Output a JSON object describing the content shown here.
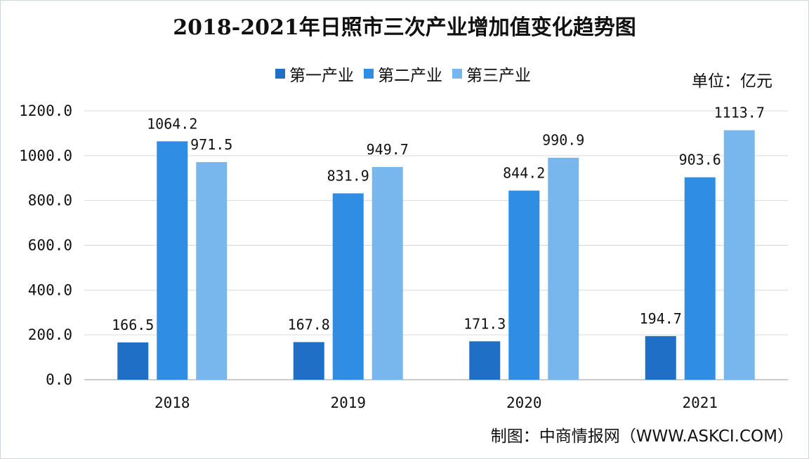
{
  "title": "2018-2021年日照市三次产业增加值变化趋势图",
  "unit_label": "单位：亿元",
  "source_label": "制图：中商情报网（WWW.ASKCI.COM）",
  "chart_data": {
    "type": "bar",
    "categories": [
      "2018",
      "2019",
      "2020",
      "2021"
    ],
    "series": [
      {
        "name": "第一产业",
        "values": [
          166.5,
          167.8,
          171.3,
          194.7
        ],
        "color": "#1e6fc5"
      },
      {
        "name": "第二产业",
        "values": [
          1064.2,
          831.9,
          844.2,
          903.6
        ],
        "color": "#2f8ee4"
      },
      {
        "name": "第三产业",
        "values": [
          971.5,
          949.7,
          990.9,
          1113.7
        ],
        "color": "#78b7ee"
      }
    ],
    "value_labels": [
      [
        "166.5",
        "167.8",
        "171.3",
        "194.7"
      ],
      [
        "1064.2",
        "831.9",
        "844.2",
        "903.6"
      ],
      [
        "971.5",
        "949.7",
        "990.9",
        "1113.7"
      ]
    ],
    "yticks": [
      "0.0",
      "200.0",
      "400.0",
      "600.0",
      "800.0",
      "1000.0",
      "1200.0"
    ],
    "ylim": [
      0,
      1200
    ],
    "grid": true,
    "legend_position": "top"
  }
}
